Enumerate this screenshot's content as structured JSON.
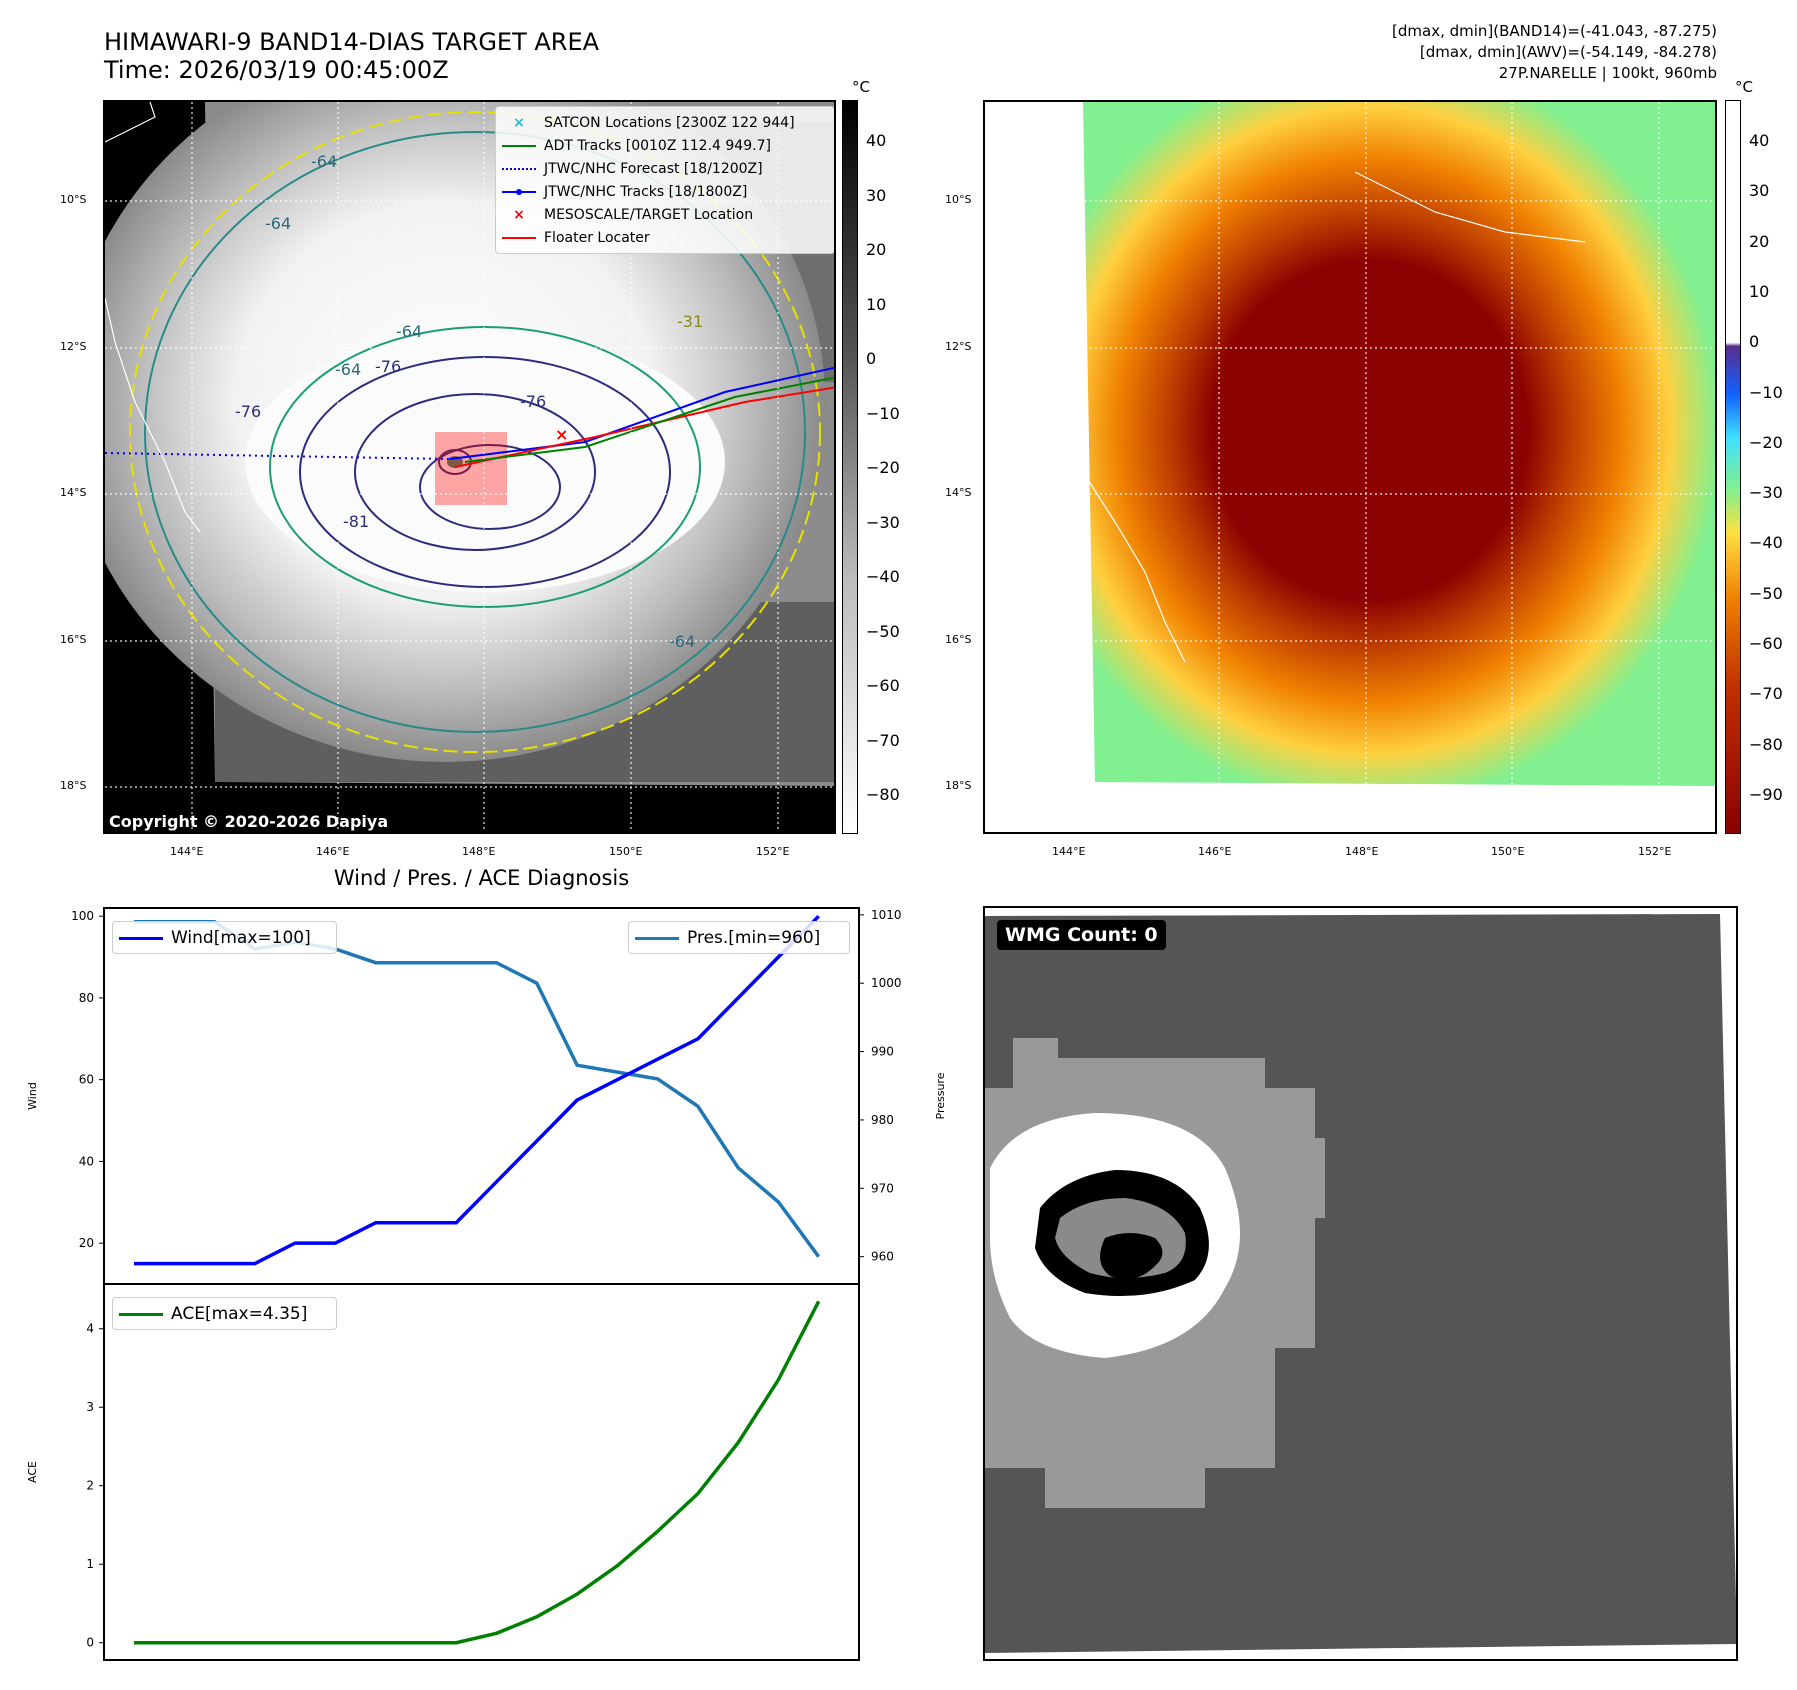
{
  "panel1": {
    "title_line1": "HIMAWARI-9 BAND14-DIAS TARGET AREA",
    "title_line2": "Time: 2026/03/19 00:45:00Z",
    "copyright": "Copyright © 2020-2026 Dapiya",
    "lat_labels": [
      "10°S",
      "12°S",
      "14°S",
      "16°S",
      "18°S"
    ],
    "lon_labels": [
      "144°E",
      "146°E",
      "148°E",
      "150°E",
      "152°E"
    ],
    "contour_labels": [
      "-64",
      "-64",
      "-64",
      "-64",
      "-76",
      "-76",
      "-76",
      "-81",
      "-31",
      "-64"
    ],
    "colorbar_unit": "°C",
    "colorbar_ticks": [
      "40",
      "30",
      "20",
      "10",
      "0",
      "−10",
      "−20",
      "−30",
      "−40",
      "−50",
      "−60",
      "−70",
      "−80"
    ],
    "legend": [
      {
        "label": "SATCON Locations [2300Z 122 944]",
        "color": "#17becf"
      },
      {
        "label": "ADT Tracks [0010Z 112.4 949.7]",
        "color": "#008000"
      },
      {
        "label": "JTWC/NHC Forecast [18/1200Z]",
        "color": "#0000ff"
      },
      {
        "label": "JTWC/NHC Tracks [18/1800Z]",
        "color": "#0000ff"
      },
      {
        "label": "MESOSCALE/TARGET Location",
        "color": "#ff0000"
      },
      {
        "label": "Floater Locater",
        "color": "#ff0000"
      }
    ]
  },
  "panel2": {
    "info_line1": "[dmax, dmin](BAND14)=(-41.043, -87.275)",
    "info_line2": "[dmax, dmin](AWV)=(-54.149, -84.278)",
    "info_line3": "27P.NARELLE | 100kt, 960mb",
    "lat_labels": [
      "10°S",
      "12°S",
      "14°S",
      "16°S",
      "18°S"
    ],
    "lon_labels": [
      "144°E",
      "146°E",
      "148°E",
      "150°E",
      "152°E"
    ],
    "colorbar_unit": "°C",
    "colorbar_ticks": [
      "40",
      "30",
      "20",
      "10",
      "0",
      "−10",
      "−20",
      "−30",
      "−40",
      "−50",
      "−60",
      "−70",
      "−80",
      "−90"
    ]
  },
  "panel4": {
    "wmg_label": "WMG Count: 0"
  },
  "chart_data": [
    {
      "type": "line",
      "title": "Wind / Pres. / ACE Diagnosis",
      "ylabel": "Wind",
      "ylabel_right": "Pressure",
      "x": [
        0,
        1,
        2,
        3,
        4,
        5,
        6,
        7,
        8,
        9,
        10,
        11,
        12,
        13,
        14,
        15,
        16,
        17
      ],
      "ylim": [
        10,
        102
      ],
      "ylim_right": [
        956,
        1011
      ],
      "yticks": [
        20,
        40,
        60,
        80,
        100
      ],
      "yticks_right": [
        960,
        970,
        980,
        990,
        1000,
        1010
      ],
      "series": [
        {
          "name": "Wind[max=100]",
          "axis": "left",
          "color": "#0000ff",
          "values": [
            15,
            15,
            15,
            15,
            20,
            20,
            25,
            25,
            25,
            35,
            45,
            55,
            60,
            65,
            70,
            80,
            90,
            100
          ]
        },
        {
          "name": "Pres.[min=960]",
          "axis": "right",
          "color": "#1f77b4",
          "values": [
            1009,
            1009,
            1009,
            1005,
            1006,
            1005,
            1003,
            1003,
            1003,
            1003,
            1000,
            988,
            987,
            986,
            982,
            973,
            968,
            960
          ]
        }
      ]
    },
    {
      "type": "line",
      "ylabel": "ACE",
      "x": [
        0,
        1,
        2,
        3,
        4,
        5,
        6,
        7,
        8,
        9,
        10,
        11,
        12,
        13,
        14,
        15,
        16,
        17
      ],
      "ylim": [
        -0.22,
        4.57
      ],
      "yticks": [
        0,
        1,
        2,
        3,
        4
      ],
      "series": [
        {
          "name": "ACE[max=4.35]",
          "color": "#008000",
          "values": [
            0,
            0,
            0,
            0,
            0,
            0,
            0,
            0,
            0,
            0.12,
            0.33,
            0.62,
            0.98,
            1.42,
            1.9,
            2.55,
            3.35,
            4.35
          ]
        }
      ]
    }
  ]
}
